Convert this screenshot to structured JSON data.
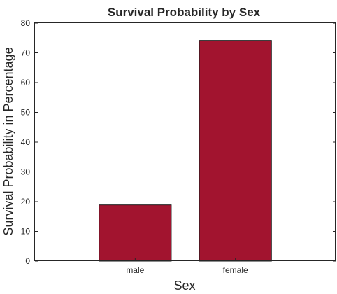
{
  "chart_data": {
    "type": "bar",
    "title": "Survival Probability by Sex",
    "xlabel": "Sex",
    "ylabel": "Survival Probability in Percentage",
    "categories": [
      "male",
      "female"
    ],
    "values": [
      18.9,
      74.2
    ],
    "ylim": [
      0,
      80
    ],
    "yticks": [
      0,
      10,
      20,
      30,
      40,
      50,
      60,
      70,
      80
    ],
    "xlim": [
      0,
      3
    ],
    "bar_color": "#A2142F",
    "grid": false,
    "legend": "none"
  }
}
